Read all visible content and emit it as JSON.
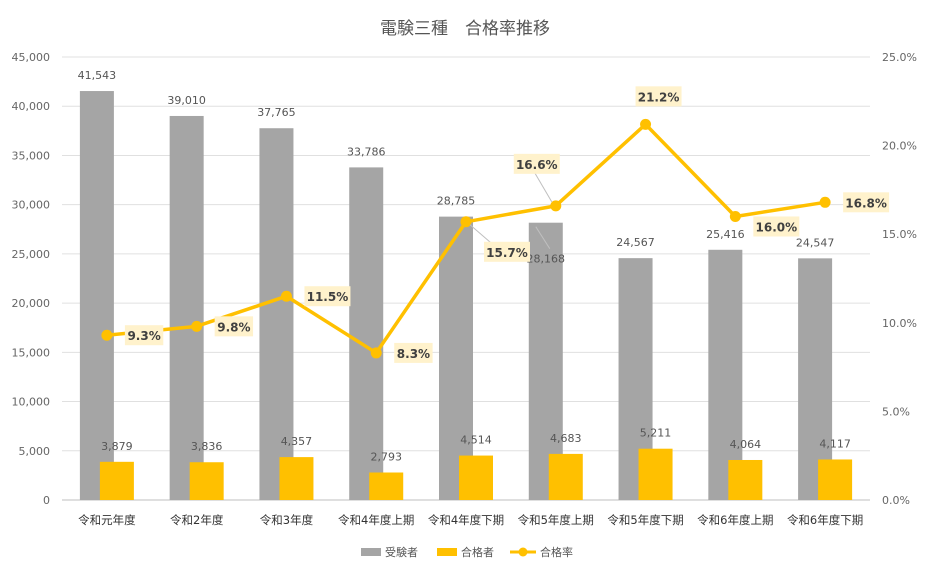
{
  "chart_data": {
    "type": "bar",
    "title": "電験三種　合格率推移",
    "categories": [
      "令和元年度",
      "令和2年度",
      "令和3年度",
      "令和4年度上期",
      "令和4年度下期",
      "令和5年度上期",
      "令和5年度下期",
      "令和6年度上期",
      "令和6年度下期"
    ],
    "left_axis": {
      "min": 0,
      "max": 45000,
      "step": 5000,
      "tick_labels": [
        "0",
        "5,000",
        "10,000",
        "15,000",
        "20,000",
        "25,000",
        "30,000",
        "35,000",
        "40,000",
        "45,000"
      ]
    },
    "right_axis": {
      "min": 0,
      "max": 25,
      "step": 5,
      "tick_labels": [
        "0.0%",
        "5.0%",
        "10.0%",
        "15.0%",
        "20.0%",
        "25.0%"
      ]
    },
    "series": [
      {
        "name": "受験者",
        "type": "bar",
        "color": "#a5a5a5",
        "values": [
          41543,
          39010,
          37765,
          33786,
          28785,
          28168,
          24567,
          25416,
          24547
        ],
        "labels": [
          "41,543",
          "39,010",
          "37,765",
          "33,786",
          "28,785",
          "28,168",
          "24,567",
          "25,416",
          "24,547"
        ]
      },
      {
        "name": "合格者",
        "type": "bar",
        "color": "#ffc000",
        "values": [
          3879,
          3836,
          4357,
          2793,
          4514,
          4683,
          5211,
          4064,
          4117
        ],
        "labels": [
          "3,879",
          "3,836",
          "4,357",
          "2,793",
          "4,514",
          "4,683",
          "5,211",
          "4,064",
          "4,117"
        ]
      },
      {
        "name": "合格率",
        "type": "line",
        "axis": "right",
        "color": "#ffc000",
        "values": [
          9.3,
          9.8,
          11.5,
          8.3,
          15.7,
          16.6,
          21.2,
          16.0,
          16.8
        ],
        "labels": [
          "9.3%",
          "9.8%",
          "11.5%",
          "8.3%",
          "15.7%",
          "16.6%",
          "21.2%",
          "16.0%",
          "16.8%"
        ]
      }
    ],
    "legend_position": "bottom"
  }
}
